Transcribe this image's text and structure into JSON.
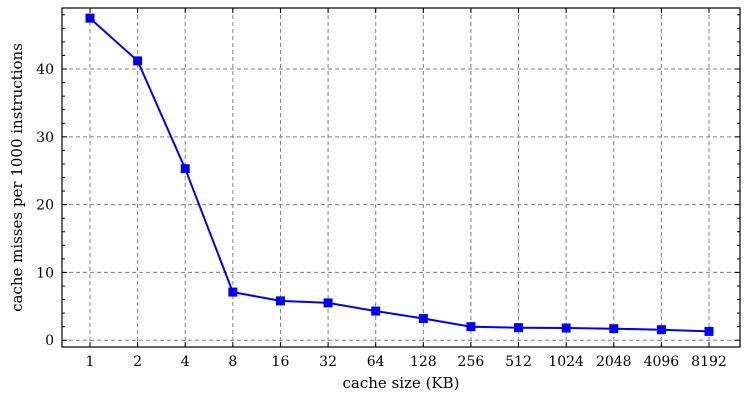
{
  "chart_data": {
    "type": "line",
    "title": "",
    "xlabel": "cache size (KB)",
    "ylabel": "cache misses per 1000 instructions",
    "categories": [
      "1",
      "2",
      "4",
      "8",
      "16",
      "32",
      "64",
      "128",
      "256",
      "512",
      "1024",
      "2048",
      "4096",
      "8192"
    ],
    "yticks": [
      0,
      10,
      20,
      30,
      40
    ],
    "ylim": [
      -1,
      49
    ],
    "grid": true,
    "series": [
      {
        "values": [
          47.5,
          41.2,
          25.3,
          7.1,
          5.8,
          5.5,
          4.3,
          3.2,
          2.0,
          1.85,
          1.8,
          1.7,
          1.55,
          1.3
        ],
        "color": "#0000ee",
        "marker": "square"
      }
    ]
  }
}
